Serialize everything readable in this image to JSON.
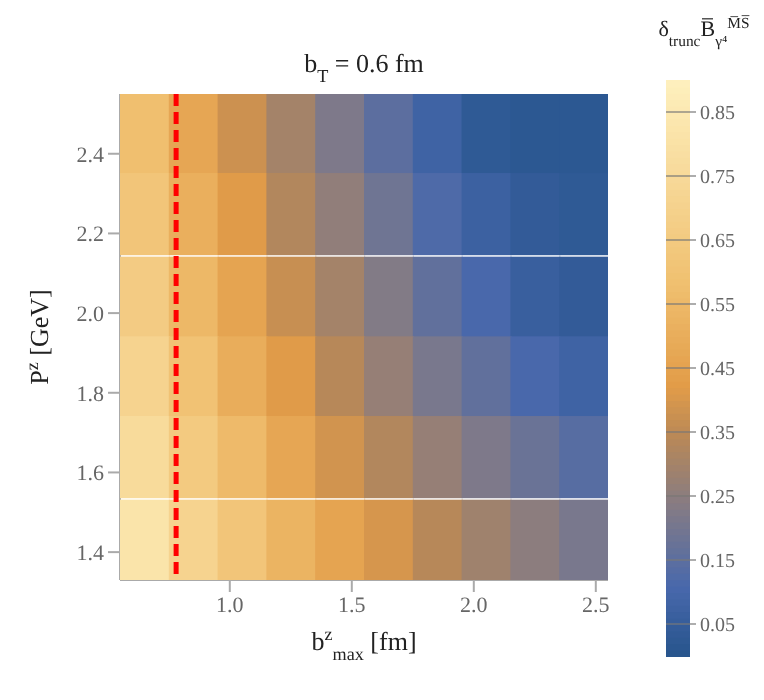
{
  "chart_data": {
    "type": "scatter",
    "title": "b$_{T}$ = 0.6 fm",
    "xlabel": "b$^{z}$$_{max}$ [fm]",
    "ylabel": "P$^{z}$ [GeV]",
    "clabel": "δ$_{trunc}$B̅$_{γ⁴}$$^{M̅S̅}$",
    "marker": "square",
    "x": [
      0.65,
      0.85,
      1.05,
      1.25,
      1.45,
      1.65,
      1.85,
      2.05,
      2.25,
      2.45,
      0.65,
      0.85,
      1.05,
      1.25,
      1.45,
      1.65,
      1.85,
      2.05,
      2.25,
      2.45,
      0.65,
      0.85,
      1.05,
      1.25,
      1.45,
      1.65,
      1.85,
      2.05,
      2.25,
      2.45,
      0.65,
      0.85,
      1.05,
      1.25,
      1.45,
      1.65,
      1.85,
      2.05,
      2.25,
      2.45,
      0.65,
      0.85,
      1.05,
      1.25,
      1.45,
      1.65,
      1.85,
      2.05,
      2.25,
      2.45,
      0.65,
      0.85,
      1.05,
      1.25,
      1.45,
      1.65,
      1.85,
      2.05,
      2.25,
      2.45
    ],
    "values": [
      2.45,
      2.45,
      2.45,
      2.45,
      2.45,
      2.45,
      2.45,
      2.45,
      2.45,
      2.45,
      2.25,
      2.25,
      2.25,
      2.25,
      2.25,
      2.25,
      2.25,
      2.25,
      2.25,
      2.25,
      2.04,
      2.04,
      2.04,
      2.04,
      2.04,
      2.04,
      2.04,
      2.04,
      2.04,
      2.04,
      1.84,
      1.84,
      1.84,
      1.84,
      1.84,
      1.84,
      1.84,
      1.84,
      1.84,
      1.84,
      1.64,
      1.64,
      1.64,
      1.64,
      1.64,
      1.64,
      1.64,
      1.64,
      1.64,
      1.64,
      1.43,
      1.43,
      1.43,
      1.43,
      1.43,
      1.43,
      1.43,
      1.43,
      1.43,
      1.43
    ],
    "cvalues": [
      0.58,
      0.47,
      0.38,
      0.3,
      0.22,
      0.15,
      0.08,
      0.03,
      0.02,
      0.02,
      0.62,
      0.51,
      0.42,
      0.33,
      0.26,
      0.19,
      0.12,
      0.07,
      0.04,
      0.03,
      0.66,
      0.55,
      0.46,
      0.37,
      0.3,
      0.23,
      0.16,
      0.11,
      0.06,
      0.04,
      0.71,
      0.6,
      0.5,
      0.42,
      0.34,
      0.27,
      0.21,
      0.16,
      0.11,
      0.08,
      0.76,
      0.65,
      0.56,
      0.47,
      0.39,
      0.33,
      0.27,
      0.22,
      0.18,
      0.14,
      0.82,
      0.71,
      0.62,
      0.53,
      0.46,
      0.4,
      0.34,
      0.29,
      0.25,
      0.21
    ],
    "xlim": [
      0.55,
      2.55
    ],
    "xticks": [
      {
        "value": 1,
        "label": "1.0"
      },
      {
        "value": 1.5,
        "label": "1.5"
      },
      {
        "value": 2,
        "label": "2.0"
      },
      {
        "value": 2.5,
        "label": "2.5"
      }
    ],
    "ylim": [
      1.33,
      2.55
    ],
    "yticks": [
      {
        "value": 1.4,
        "label": "1.4"
      },
      {
        "value": 1.6,
        "label": "1.6"
      },
      {
        "value": 1.8,
        "label": "1.8"
      },
      {
        "value": 2,
        "label": "2.0"
      },
      {
        "value": 2.2,
        "label": "2.2"
      },
      {
        "value": 2.4,
        "label": "2.4"
      }
    ],
    "clim": [
      0,
      0.9
    ],
    "cticks": [
      0.05,
      0.15,
      0.25,
      0.35,
      0.45,
      0.55,
      0.65,
      0.75,
      0.85
    ],
    "ref_lines": [
      {
        "axis": "x",
        "value": 0.78,
        "color": "#ff0000",
        "line_style": "dashed"
      }
    ]
  }
}
